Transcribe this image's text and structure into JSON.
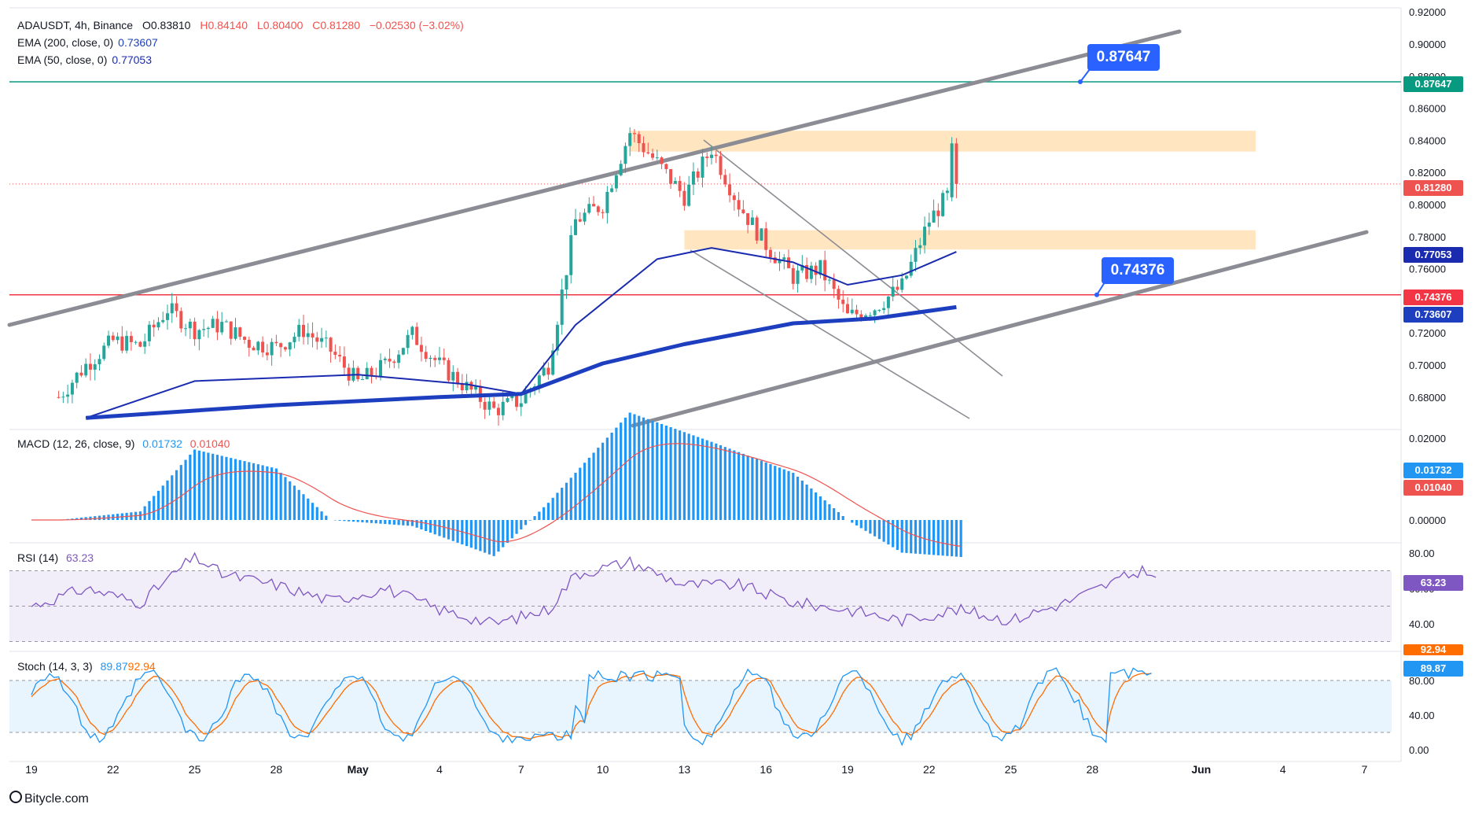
{
  "header": {
    "symbol": "ADAUSDT, 4h, Binance",
    "open": "O0.83810",
    "high": "H0.84140",
    "low": "L0.80400",
    "close": "C0.81280",
    "change": "−0.02530 (−3.02%)"
  },
  "indicators": {
    "ema200_label": "EMA (200, close, 0)",
    "ema200_value": "0.73607",
    "ema50_label": "EMA (50, close, 0)",
    "ema50_value": "0.77053",
    "macd_label": "MACD (12, 26, close, 9)",
    "macd_value": "0.01732",
    "macd_signal_value": "0.01040",
    "rsi_label": "RSI (14)",
    "rsi_value": "63.23",
    "stoch_label": "Stoch (14, 3, 3)",
    "stoch_k_value": "89.87",
    "stoch_d_value": "92.94"
  },
  "price_axis_ticks": [
    "0.92000",
    "0.90000",
    "0.88000",
    "0.86000",
    "0.84000",
    "0.82000",
    "0.80000",
    "0.78000",
    "0.76000",
    "0.74000",
    "0.72000",
    "0.70000",
    "0.68000"
  ],
  "macd_axis_ticks": [
    "0.02000",
    "0.00000"
  ],
  "rsi_axis_ticks": [
    "80.00",
    "60.00",
    "40.00"
  ],
  "stoch_axis_ticks": [
    "80.00",
    "40.00",
    "0.00"
  ],
  "price_badges": {
    "resistance": "0.87647",
    "last": "0.81280",
    "support": "0.74376",
    "ema50": "0.77053",
    "ema200": "0.73607"
  },
  "callouts": {
    "resistance": "0.87647",
    "support": "0.74376"
  },
  "time_axis": [
    "19",
    "22",
    "25",
    "28",
    "May",
    "4",
    "7",
    "10",
    "13",
    "16",
    "19",
    "22",
    "25",
    "28",
    "Jun",
    "4",
    "7"
  ],
  "colors": {
    "up": "#26a69a",
    "down": "#ef5350",
    "ema50": "#1a2bb0",
    "ema200": "#1d3fbf",
    "resistance_line": "#089981",
    "support_line": "#f23645",
    "channel": "#8c8c94",
    "zone": "#ffe0b2",
    "macd_hist": "#2196f3",
    "macd_signal": "#ef5350",
    "rsi": "#7e57c2",
    "stoch_k": "#2196f3",
    "stoch_d": "#ff6d00",
    "callout": "#2962ff"
  },
  "footer": "Bitycle.com",
  "chart_data": {
    "type": "candlestick",
    "title": "ADAUSDT, 4h, Binance",
    "timeframe": "4h",
    "x_range": [
      "Apr 19",
      "Jun 7"
    ],
    "ylim": [
      0.665,
      0.925
    ],
    "last_candle": {
      "open": 0.8381,
      "high": 0.8414,
      "low": 0.804,
      "close": 0.8128
    },
    "close_path": [
      {
        "date": "Apr 20",
        "close": 0.68
      },
      {
        "date": "Apr 21",
        "close": 0.7
      },
      {
        "date": "Apr 22",
        "close": 0.715
      },
      {
        "date": "Apr 23",
        "close": 0.712
      },
      {
        "date": "Apr 24",
        "close": 0.735
      },
      {
        "date": "Apr 25",
        "close": 0.722
      },
      {
        "date": "Apr 26",
        "close": 0.725
      },
      {
        "date": "Apr 27",
        "close": 0.714
      },
      {
        "date": "Apr 28",
        "close": 0.711
      },
      {
        "date": "Apr 29",
        "close": 0.722
      },
      {
        "date": "Apr 30",
        "close": 0.709
      },
      {
        "date": "May 1",
        "close": 0.689
      },
      {
        "date": "May 2",
        "close": 0.7
      },
      {
        "date": "May 3",
        "close": 0.719
      },
      {
        "date": "May 4",
        "close": 0.7
      },
      {
        "date": "May 5",
        "close": 0.686
      },
      {
        "date": "May 6",
        "close": 0.672
      },
      {
        "date": "May 7",
        "close": 0.678
      },
      {
        "date": "May 8",
        "close": 0.7
      },
      {
        "date": "May 9",
        "close": 0.79
      },
      {
        "date": "May 10",
        "close": 0.8
      },
      {
        "date": "May 11",
        "close": 0.845
      },
      {
        "date": "May 12",
        "close": 0.826
      },
      {
        "date": "May 13",
        "close": 0.805
      },
      {
        "date": "May 14",
        "close": 0.835
      },
      {
        "date": "May 15",
        "close": 0.8
      },
      {
        "date": "May 16",
        "close": 0.775
      },
      {
        "date": "May 17",
        "close": 0.755
      },
      {
        "date": "May 18",
        "close": 0.76
      },
      {
        "date": "May 19",
        "close": 0.73
      },
      {
        "date": "May 20",
        "close": 0.736
      },
      {
        "date": "May 21",
        "close": 0.749
      },
      {
        "date": "May 22",
        "close": 0.79
      },
      {
        "date": "May 23",
        "close": 0.8128
      }
    ],
    "ema50": [
      {
        "date": "Apr 21",
        "value": 0.667
      },
      {
        "date": "Apr 25",
        "value": 0.69
      },
      {
        "date": "May 1",
        "value": 0.694
      },
      {
        "date": "May 5",
        "value": 0.688
      },
      {
        "date": "May 7",
        "value": 0.682
      },
      {
        "date": "May 9",
        "value": 0.725
      },
      {
        "date": "May 12",
        "value": 0.766
      },
      {
        "date": "May 14",
        "value": 0.773
      },
      {
        "date": "May 17",
        "value": 0.764
      },
      {
        "date": "May 19",
        "value": 0.75
      },
      {
        "date": "May 21",
        "value": 0.756
      },
      {
        "date": "May 23",
        "value": 0.77053
      }
    ],
    "ema200": [
      {
        "date": "Apr 21",
        "value": 0.667
      },
      {
        "date": "Apr 28",
        "value": 0.675
      },
      {
        "date": "May 4",
        "value": 0.68
      },
      {
        "date": "May 7",
        "value": 0.682
      },
      {
        "date": "May 10",
        "value": 0.701
      },
      {
        "date": "May 13",
        "value": 0.713
      },
      {
        "date": "May 17",
        "value": 0.726
      },
      {
        "date": "May 20",
        "value": 0.729
      },
      {
        "date": "May 23",
        "value": 0.73607
      }
    ],
    "horizontal_levels": [
      {
        "value": 0.87647,
        "role": "resistance"
      },
      {
        "value": 0.74376,
        "role": "support"
      }
    ],
    "zones": [
      {
        "from": "May 11",
        "to": "Jun 3",
        "low": 0.833,
        "high": 0.846
      },
      {
        "from": "May 13",
        "to": "Jun 3",
        "low": 0.772,
        "high": 0.784
      }
    ],
    "rsi_last": 63.23,
    "macd_last": 0.01732,
    "macd_signal_last": 0.0104,
    "stoch_k_last": 89.87,
    "stoch_d_last": 92.94
  }
}
